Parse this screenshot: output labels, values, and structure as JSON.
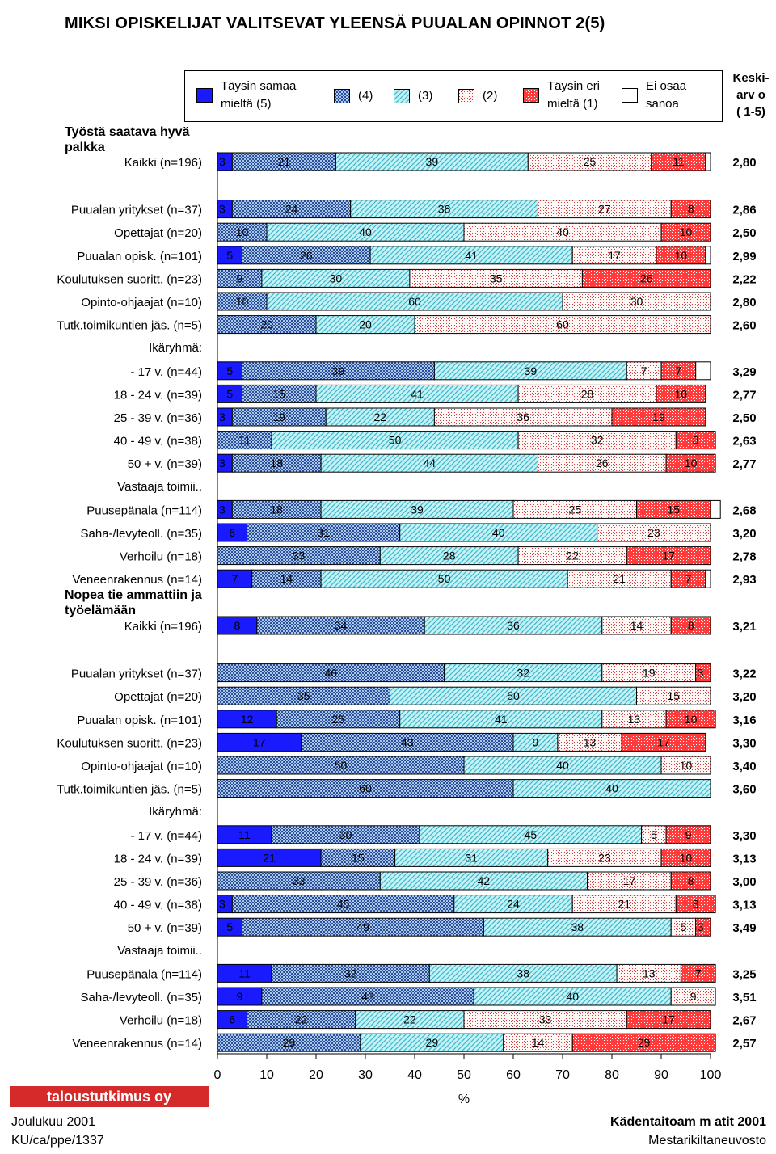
{
  "page": {
    "title": "MIKSI OPISKELIJAT VALITSEVAT YLEENSÄ PUUALAN OPINNOT 2(5)",
    "mean_header": [
      "Keski-",
      "arv o",
      "( 1-5)"
    ],
    "logo_text": "taloustutkimus oy",
    "footer_left": [
      "Joulukuu 2001",
      "KU/ca/ppe/1337"
    ],
    "footer_right": [
      "Kädentaitoam m atit 2001",
      "Mestarikiltaneuvosto"
    ]
  },
  "legend": [
    {
      "label": "Täysin samaa mieltä (5)",
      "lines": [
        "Täysin samaa",
        "mieltä (5)"
      ]
    },
    {
      "label": "(4)",
      "lines": [
        "(4)"
      ]
    },
    {
      "label": "(3)",
      "lines": [
        "(3)"
      ]
    },
    {
      "label": "(2)",
      "lines": [
        "(2)"
      ]
    },
    {
      "label": "Täysin eri mieltä (1)",
      "lines": [
        "Täysin eri",
        "mieltä (1)"
      ]
    },
    {
      "label": "Ei osaa sanoa",
      "lines": [
        "Ei osaa",
        "sanoa"
      ]
    }
  ],
  "colors": {
    "c5": "#1a1aff",
    "c4_bg": "#aac8e8",
    "c4_fg": "#2a4e9a",
    "c3_bg": "#c6f2f6",
    "c3_fg": "#3ab8cc",
    "c2_bg": "#fff6f6",
    "c2_fg": "#d04040",
    "c1_bg": "#ff3b3b",
    "c1_fg": "#ffffff",
    "c0": "#ffffff"
  },
  "chart_data": {
    "type": "bar",
    "orientation": "horizontal-stacked-100",
    "xlabel": "%",
    "xlim": [
      0,
      100
    ],
    "xticks": [
      0,
      10,
      20,
      30,
      40,
      50,
      60,
      70,
      80,
      90,
      100
    ],
    "series_names": [
      "Täysin samaa mieltä (5)",
      "(4)",
      "(3)",
      "(2)",
      "Täysin eri mieltä (1)",
      "Ei osaa sanoa"
    ],
    "mean_label": "Keskiarvo (1-5)",
    "sections": [
      {
        "title": [
          "Työstä saatava hyvä",
          "palkka"
        ],
        "rows": [
          {
            "type": "bar",
            "label": "Kaikki (n=196)",
            "values": [
              3,
              21,
              39,
              25,
              11,
              1
            ],
            "mean": "2,80"
          },
          {
            "type": "gap"
          },
          {
            "type": "bar",
            "label": "Puualan yritykset (n=37)",
            "values": [
              3,
              24,
              38,
              27,
              8,
              0
            ],
            "mean": "2,86"
          },
          {
            "type": "bar",
            "label": "Opettajat (n=20)",
            "values": [
              0,
              10,
              40,
              40,
              10,
              0
            ],
            "mean": "2,50"
          },
          {
            "type": "bar",
            "label": "Puualan opisk. (n=101)",
            "values": [
              5,
              26,
              41,
              17,
              10,
              1
            ],
            "mean": "2,99"
          },
          {
            "type": "bar",
            "label": "Koulutuksen suoritt. (n=23)",
            "values": [
              0,
              9,
              30,
              35,
              26,
              0
            ],
            "mean": "2,22"
          },
          {
            "type": "bar",
            "label": "Opinto-ohjaajat (n=10)",
            "values": [
              0,
              10,
              60,
              30,
              0,
              0
            ],
            "mean": "2,80"
          },
          {
            "type": "bar",
            "label": "Tutk.toimikuntien jäs. (n=5)",
            "values": [
              0,
              20,
              20,
              60,
              0,
              0
            ],
            "mean": "2,60"
          },
          {
            "type": "header",
            "label": "Ikäryhmä:"
          },
          {
            "type": "bar",
            "label": "- 17 v.  (n=44)",
            "values": [
              5,
              39,
              39,
              7,
              7,
              3
            ],
            "mean": "3,29"
          },
          {
            "type": "bar",
            "label": "18 - 24 v. (n=39)",
            "values": [
              5,
              15,
              41,
              28,
              10,
              0
            ],
            "mean": "2,77"
          },
          {
            "type": "bar",
            "label": "25 - 39 v. (n=36)",
            "values": [
              3,
              19,
              22,
              36,
              19,
              0
            ],
            "mean": "2,50"
          },
          {
            "type": "bar",
            "label": "40 - 49 v. (n=38)",
            "values": [
              0,
              11,
              50,
              32,
              8,
              0
            ],
            "mean": "2,63"
          },
          {
            "type": "bar",
            "label": "50 + v.  (n=39)",
            "values": [
              3,
              18,
              44,
              26,
              10,
              0
            ],
            "mean": "2,77"
          },
          {
            "type": "header",
            "label": "Vastaaja toimii.."
          },
          {
            "type": "bar",
            "label": "Puusepänala (n=114)",
            "values": [
              3,
              18,
              39,
              25,
              15,
              2
            ],
            "mean": "2,68"
          },
          {
            "type": "bar",
            "label": "Saha-/levyteoll. (n=35)",
            "values": [
              6,
              31,
              40,
              23,
              0,
              0
            ],
            "mean": "3,20"
          },
          {
            "type": "bar",
            "label": "Verhoilu (n=18)",
            "values": [
              0,
              33,
              28,
              22,
              17,
              0
            ],
            "mean": "2,78"
          },
          {
            "type": "bar",
            "label": "Veneenrakennus (n=14)",
            "values": [
              7,
              14,
              50,
              21,
              7,
              1
            ],
            "mean": "2,93"
          }
        ]
      },
      {
        "title": [
          "Nopea tie ammattiin ja",
          "työelämään"
        ],
        "rows": [
          {
            "type": "bar",
            "label": "Kaikki (n=196)",
            "values": [
              8,
              34,
              36,
              14,
              8,
              0
            ],
            "mean": "3,21"
          },
          {
            "type": "gap"
          },
          {
            "type": "bar",
            "label": "Puualan yritykset (n=37)",
            "values": [
              0,
              46,
              32,
              19,
              3,
              0
            ],
            "mean": "3,22"
          },
          {
            "type": "bar",
            "label": "Opettajat (n=20)",
            "values": [
              0,
              35,
              50,
              15,
              0,
              0
            ],
            "mean": "3,20"
          },
          {
            "type": "bar",
            "label": "Puualan opisk. (n=101)",
            "values": [
              12,
              25,
              41,
              13,
              10,
              0
            ],
            "mean": "3,16"
          },
          {
            "type": "bar",
            "label": "Koulutuksen suoritt. (n=23)",
            "values": [
              17,
              43,
              9,
              13,
              17,
              0
            ],
            "mean": "3,30"
          },
          {
            "type": "bar",
            "label": "Opinto-ohjaajat (n=10)",
            "values": [
              0,
              50,
              40,
              10,
              0,
              0
            ],
            "mean": "3,40"
          },
          {
            "type": "bar",
            "label": "Tutk.toimikuntien jäs. (n=5)",
            "values": [
              0,
              60,
              40,
              0,
              0,
              0
            ],
            "mean": "3,60"
          },
          {
            "type": "header",
            "label": "Ikäryhmä:"
          },
          {
            "type": "bar",
            "label": "- 17 v.  (n=44)",
            "values": [
              11,
              30,
              45,
              5,
              9,
              0
            ],
            "mean": "3,30"
          },
          {
            "type": "bar",
            "label": "18 - 24 v. (n=39)",
            "values": [
              21,
              15,
              31,
              23,
              10,
              0
            ],
            "mean": "3,13"
          },
          {
            "type": "bar",
            "label": "25 - 39 v. (n=36)",
            "values": [
              0,
              33,
              42,
              17,
              8,
              0
            ],
            "mean": "3,00"
          },
          {
            "type": "bar",
            "label": "40 - 49 v. (n=38)",
            "values": [
              3,
              45,
              24,
              21,
              8,
              0
            ],
            "mean": "3,13"
          },
          {
            "type": "bar",
            "label": "50 + v.  (n=39)",
            "values": [
              5,
              49,
              38,
              5,
              3,
              0
            ],
            "mean": "3,49"
          },
          {
            "type": "header",
            "label": "Vastaaja toimii.."
          },
          {
            "type": "bar",
            "label": "Puusepänala (n=114)",
            "values": [
              11,
              32,
              38,
              13,
              7,
              0
            ],
            "mean": "3,25"
          },
          {
            "type": "bar",
            "label": "Saha-/levyteoll. (n=35)",
            "values": [
              9,
              43,
              40,
              9,
              0,
              0
            ],
            "mean": "3,51"
          },
          {
            "type": "bar",
            "label": "Verhoilu (n=18)",
            "values": [
              6,
              22,
              22,
              33,
              17,
              0
            ],
            "mean": "2,67"
          },
          {
            "type": "bar",
            "label": "Veneenrakennus (n=14)",
            "values": [
              0,
              29,
              29,
              14,
              29,
              0
            ],
            "mean": "2,57"
          }
        ]
      }
    ]
  }
}
